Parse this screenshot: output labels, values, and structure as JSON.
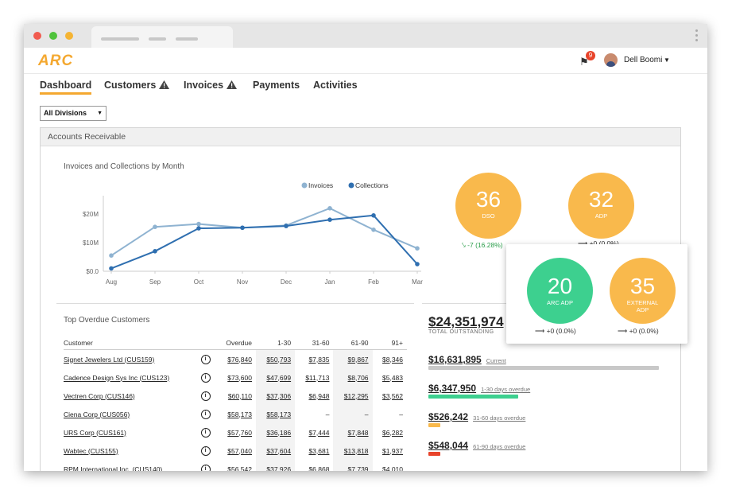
{
  "app": {
    "logo": "ARC",
    "notification_count": "9",
    "user_name": "Dell Boomi"
  },
  "nav": {
    "tabs": [
      {
        "label": "Dashboard",
        "active": true,
        "warning": false
      },
      {
        "label": "Customers",
        "active": false,
        "warning": true
      },
      {
        "label": "Invoices",
        "active": false,
        "warning": true
      },
      {
        "label": "Payments",
        "active": false,
        "warning": false
      },
      {
        "label": "Activities",
        "active": false,
        "warning": false
      }
    ]
  },
  "division_select": {
    "value": "All Divisions"
  },
  "panel": {
    "title": "Accounts Receivable"
  },
  "chart_data": {
    "type": "line",
    "title": "Invoices and Collections by Month",
    "x": [
      "Aug",
      "Sep",
      "Oct",
      "Nov",
      "Dec",
      "Jan",
      "Feb",
      "Mar"
    ],
    "y_ticks": [
      "$0.0",
      "$10M",
      "$20M"
    ],
    "ylim": [
      0,
      25
    ],
    "series": [
      {
        "name": "Invoices",
        "color": "#8fb3d1",
        "values": [
          5.5,
          15.5,
          16.5,
          15.2,
          16,
          22,
          14.5,
          8
        ]
      },
      {
        "name": "Collections",
        "color": "#2f6fb0",
        "values": [
          1,
          7,
          15,
          15.2,
          15.8,
          18,
          19.5,
          2.5
        ]
      }
    ],
    "legend": "top-right",
    "grid": false
  },
  "metrics": {
    "dso": {
      "value": "36",
      "label": "DSO",
      "change": "-7 (16.28%)",
      "color": "#f9b94c"
    },
    "adp": {
      "value": "32",
      "label": "ADP",
      "change": "+0 (0.0%)",
      "color": "#f9b94c"
    },
    "arc_adp": {
      "value": "20",
      "label": "ARC ADP",
      "change": "+0 (0.0%)",
      "color": "#3dd08f"
    },
    "external_adp": {
      "value": "35",
      "label": "EXTERNAL ADP",
      "change": "+0 (0.0%)",
      "color": "#f9b94c"
    }
  },
  "top_overdue": {
    "title": "Top Overdue Customers",
    "columns": [
      "Customer",
      "Overdue",
      "1-30",
      "31-60",
      "61-90",
      "91+"
    ],
    "rows": [
      {
        "customer": "Signet Jewelers Ltd (CUS159)",
        "overdue": "$76,840",
        "d1_30": "$50,793",
        "d31_60": "$7,835",
        "d61_90": "$9,867",
        "d91": "$8,346"
      },
      {
        "customer": "Cadence Design Sys Inc (CUS123)",
        "overdue": "$73,600",
        "d1_30": "$47,699",
        "d31_60": "$11,713",
        "d61_90": "$8,706",
        "d91": "$5,483"
      },
      {
        "customer": "Vectren Corp (CUS146)",
        "overdue": "$60,110",
        "d1_30": "$37,306",
        "d31_60": "$6,948",
        "d61_90": "$12,295",
        "d91": "$3,562"
      },
      {
        "customer": "Ciena Corp (CUS056)",
        "overdue": "$58,173",
        "d1_30": "$58,173",
        "d31_60": "–",
        "d61_90": "–",
        "d91": "–"
      },
      {
        "customer": "URS Corp (CUS161)",
        "overdue": "$57,760",
        "d1_30": "$36,186",
        "d31_60": "$7,444",
        "d61_90": "$7,848",
        "d91": "$6,282"
      },
      {
        "customer": "Wabtec (CUS155)",
        "overdue": "$57,040",
        "d1_30": "$37,604",
        "d31_60": "$3,681",
        "d61_90": "$13,818",
        "d91": "$1,937"
      },
      {
        "customer": "RPM International Inc. (CUS140)",
        "overdue": "$56,542",
        "d1_30": "$37,926",
        "d31_60": "$6,868",
        "d61_90": "$7,739",
        "d91": "$4,010"
      }
    ]
  },
  "outstanding": {
    "total": "$24,351,974",
    "total_label": "TOTAL OUTSTANDING",
    "aging": [
      {
        "amount": "$16,631,895",
        "label": "Current",
        "fraction": 1.0,
        "color": "#c8c8c8"
      },
      {
        "amount": "$6,347,950",
        "label": "1-30 days overdue",
        "fraction": 0.39,
        "color": "#3dd08f"
      },
      {
        "amount": "$526,242",
        "label": "31-60 days overdue",
        "fraction": 0.05,
        "color": "#f9b94c"
      },
      {
        "amount": "$548,044",
        "label": "61-90 days overdue",
        "fraction": 0.05,
        "color": "#e8442b"
      }
    ]
  }
}
